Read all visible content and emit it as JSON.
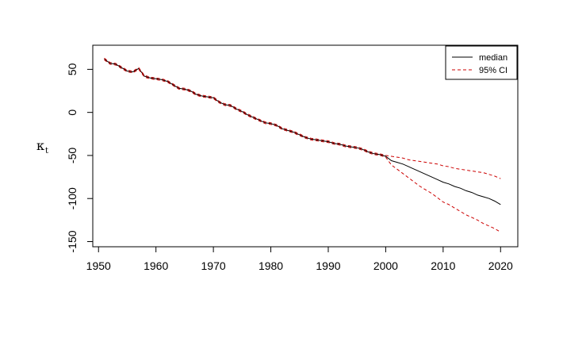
{
  "chart_data": {
    "type": "line",
    "title": "",
    "xlabel": "",
    "ylabel": "κ",
    "ylabel_subscript": "t",
    "xlim": [
      1949,
      2023
    ],
    "ylim": [
      -156,
      78
    ],
    "x_ticks": [
      1950,
      1960,
      1970,
      1980,
      1990,
      2000,
      2010,
      2020
    ],
    "y_ticks": [
      -150,
      -100,
      -50,
      0,
      50
    ],
    "grid": false,
    "legend_position": "top-right",
    "colors": {
      "median": "#000000",
      "ci": "#cc0000"
    },
    "series": [
      {
        "name": "median",
        "style": "solid",
        "x": [
          1951,
          1952,
          1953,
          1954,
          1955,
          1956,
          1957,
          1958,
          1959,
          1960,
          1961,
          1962,
          1963,
          1964,
          1965,
          1966,
          1967,
          1968,
          1969,
          1970,
          1971,
          1972,
          1973,
          1974,
          1975,
          1976,
          1977,
          1978,
          1979,
          1980,
          1981,
          1982,
          1983,
          1984,
          1985,
          1986,
          1987,
          1988,
          1989,
          1990,
          1991,
          1992,
          1993,
          1994,
          1995,
          1996,
          1997,
          1998,
          1999,
          2000,
          2001,
          2002,
          2003,
          2004,
          2005,
          2006,
          2007,
          2008,
          2009,
          2010,
          2011,
          2012,
          2013,
          2014,
          2015,
          2016,
          2017,
          2018,
          2019,
          2020
        ],
        "values": [
          62,
          57,
          56,
          52,
          48,
          47,
          51,
          42,
          40,
          39,
          38,
          36,
          32,
          28,
          27,
          25,
          21,
          19,
          18,
          17,
          12,
          9,
          8,
          4,
          1,
          -3,
          -6,
          -9,
          -12,
          -13,
          -15,
          -19,
          -21,
          -23,
          -26,
          -29,
          -31,
          -32,
          -33,
          -34,
          -36,
          -37,
          -39,
          -40,
          -41,
          -43,
          -46,
          -48,
          -49,
          -51,
          -56,
          -58,
          -60,
          -63,
          -66,
          -69,
          -72,
          -75,
          -78,
          -81,
          -83,
          -86,
          -88,
          -91,
          -93,
          -96,
          -98,
          -100,
          -103,
          -107
        ]
      },
      {
        "name": "95% CI",
        "style": "dashed",
        "x": [
          1951,
          1952,
          1953,
          1954,
          1955,
          1956,
          1957,
          1958,
          1959,
          1960,
          1961,
          1962,
          1963,
          1964,
          1965,
          1966,
          1967,
          1968,
          1969,
          1970,
          1971,
          1972,
          1973,
          1974,
          1975,
          1976,
          1977,
          1978,
          1979,
          1980,
          1981,
          1982,
          1983,
          1984,
          1985,
          1986,
          1987,
          1988,
          1989,
          1990,
          1991,
          1992,
          1993,
          1994,
          1995,
          1996,
          1997,
          1998,
          1999,
          2000,
          2001,
          2002,
          2003,
          2004,
          2005,
          2006,
          2007,
          2008,
          2009,
          2010,
          2011,
          2012,
          2013,
          2014,
          2015,
          2016,
          2017,
          2018,
          2019,
          2020
        ],
        "values": [
          63,
          58,
          57,
          53,
          49,
          48,
          52,
          43,
          41,
          40,
          39,
          37,
          33,
          29,
          28,
          26,
          22,
          20,
          19,
          18,
          13,
          10,
          9,
          5,
          2,
          -2,
          -5,
          -8,
          -11,
          -12,
          -14,
          -18,
          -20,
          -22,
          -25,
          -28,
          -30,
          -31,
          -32,
          -33,
          -35,
          -36,
          -38,
          -39,
          -40,
          -42,
          -45,
          -47,
          -48,
          -50,
          -51,
          -52,
          -53,
          -55,
          -56,
          -57,
          -58,
          -59,
          -60,
          -62,
          -63,
          -65,
          -66,
          -67,
          -68,
          -69,
          -70,
          -72,
          -74,
          -77
        ]
      },
      {
        "name": "",
        "style": "dashed",
        "x": [
          1951,
          1952,
          1953,
          1954,
          1955,
          1956,
          1957,
          1958,
          1959,
          1960,
          1961,
          1962,
          1963,
          1964,
          1965,
          1966,
          1967,
          1968,
          1969,
          1970,
          1971,
          1972,
          1973,
          1974,
          1975,
          1976,
          1977,
          1978,
          1979,
          1980,
          1981,
          1982,
          1983,
          1984,
          1985,
          1986,
          1987,
          1988,
          1989,
          1990,
          1991,
          1992,
          1993,
          1994,
          1995,
          1996,
          1997,
          1998,
          1999,
          2000,
          2001,
          2002,
          2003,
          2004,
          2005,
          2006,
          2007,
          2008,
          2009,
          2010,
          2011,
          2012,
          2013,
          2014,
          2015,
          2016,
          2017,
          2018,
          2019,
          2020
        ],
        "values": [
          61,
          56,
          55,
          51,
          47,
          46,
          50,
          41,
          39,
          38,
          37,
          35,
          31,
          27,
          26,
          24,
          20,
          18,
          17,
          16,
          11,
          8,
          7,
          3,
          0,
          -4,
          -7,
          -10,
          -13,
          -14,
          -16,
          -20,
          -22,
          -24,
          -27,
          -30,
          -32,
          -33,
          -34,
          -35,
          -37,
          -38,
          -40,
          -41,
          -42,
          -44,
          -47,
          -49,
          -50,
          -52,
          -61,
          -66,
          -71,
          -76,
          -81,
          -86,
          -90,
          -94,
          -99,
          -104,
          -107,
          -111,
          -115,
          -119,
          -122,
          -125,
          -129,
          -132,
          -135,
          -139
        ]
      }
    ]
  }
}
